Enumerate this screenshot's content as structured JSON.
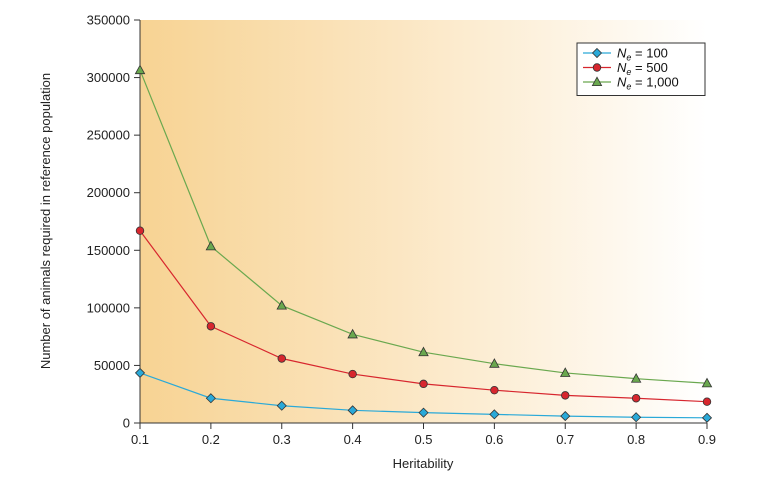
{
  "chart_data": {
    "type": "line",
    "title": "",
    "xlabel": "Heritability",
    "ylabel": "Number of animals required in reference population",
    "x": [
      0.1,
      0.2,
      0.3,
      0.4,
      0.5,
      0.6,
      0.7,
      0.8,
      0.9
    ],
    "x_tick_labels": [
      "0.1",
      "0.2",
      "0.3",
      "0.4",
      "0.5",
      "0.6",
      "0.7",
      "0.8",
      "0.9"
    ],
    "y_ticks": [
      0,
      50000,
      100000,
      150000,
      200000,
      250000,
      300000,
      350000
    ],
    "y_tick_labels": [
      "0",
      "50000",
      "100000",
      "150000",
      "200000",
      "250000",
      "300000",
      "350000"
    ],
    "xlim": [
      0.1,
      0.9
    ],
    "ylim": [
      0,
      350000
    ],
    "grid": false,
    "legend_position": "top-right",
    "background": "gradient-orange-to-white",
    "series": [
      {
        "name_base": "N",
        "name_sub": "e",
        "name_value": " = 100",
        "marker": "diamond",
        "color": "#2aa9d8",
        "values": [
          43500,
          21500,
          15000,
          11000,
          9000,
          7500,
          6000,
          5000,
          4500
        ]
      },
      {
        "name_base": "N",
        "name_sub": "e",
        "name_value": " = 500",
        "marker": "circle",
        "color": "#d7262e",
        "values": [
          167000,
          84000,
          56000,
          42500,
          34000,
          28500,
          24000,
          21500,
          18500
        ]
      },
      {
        "name_base": "N",
        "name_sub": "e",
        "name_value": " = 1,000",
        "marker": "triangle",
        "color": "#6aa84f",
        "values": [
          306500,
          153500,
          102000,
          77000,
          61500,
          51500,
          43500,
          38500,
          34500
        ]
      }
    ]
  }
}
